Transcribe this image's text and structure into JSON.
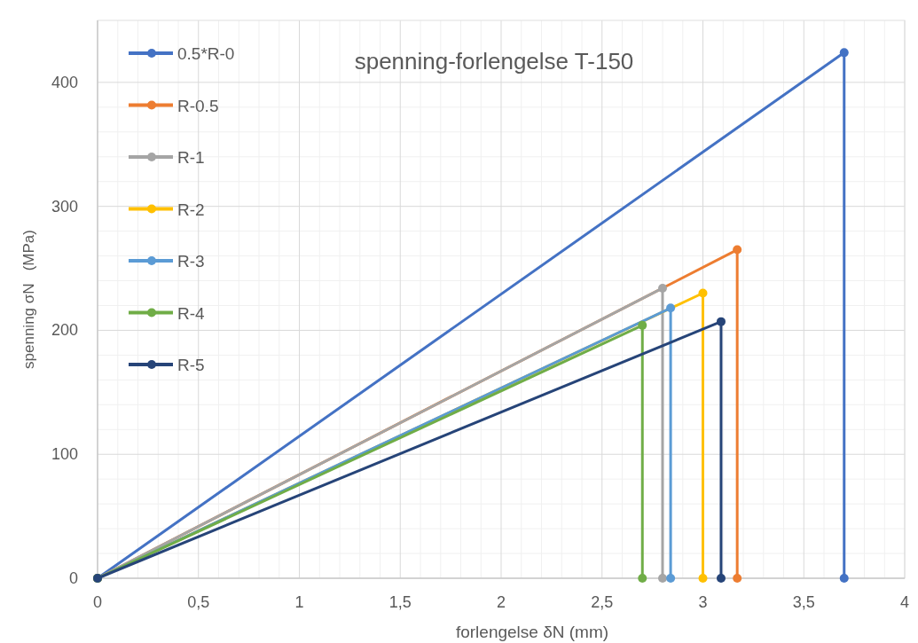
{
  "chart_data": {
    "type": "line",
    "title": "spenning-forlengelse T-150",
    "xlabel": "forlengelse δN (mm)",
    "ylabel": "spenning σN   (MPa)",
    "xlim": [
      0,
      4
    ],
    "ylim": [
      0,
      450
    ],
    "xticks": [
      0,
      {
        "value": 0.5,
        "label": "0,5"
      },
      1,
      {
        "value": 1.5,
        "label": "1,5"
      },
      2,
      {
        "value": 2.5,
        "label": "2,5"
      },
      3,
      {
        "value": 3.5,
        "label": "3,5"
      },
      4
    ],
    "yticks": [
      0,
      100,
      200,
      300,
      400
    ],
    "grid": true,
    "legend": "top left",
    "marker": "circle",
    "line_style": "solid",
    "series": [
      {
        "name": "0.5*R-0",
        "color": "#4472c4",
        "x": [
          0,
          3.7,
          3.7
        ],
        "values": [
          0,
          424,
          0
        ]
      },
      {
        "name": "R-0.5",
        "color": "#ed7d31",
        "x": [
          0,
          3.17,
          3.17
        ],
        "values": [
          0,
          265,
          0
        ]
      },
      {
        "name": "R-1",
        "color": "#a5a5a5",
        "x": [
          0,
          2.8,
          2.8
        ],
        "values": [
          0,
          234,
          0
        ]
      },
      {
        "name": "R-2",
        "color": "#ffc000",
        "x": [
          0,
          3.0,
          3.0
        ],
        "values": [
          0,
          230,
          0
        ]
      },
      {
        "name": "R-3",
        "color": "#5b9bd5",
        "x": [
          0,
          2.84,
          2.84
        ],
        "values": [
          0,
          218,
          0
        ]
      },
      {
        "name": "R-4",
        "color": "#70ad47",
        "x": [
          0,
          2.7,
          2.7
        ],
        "values": [
          0,
          204,
          0
        ]
      },
      {
        "name": "R-5",
        "color": "#264478",
        "x": [
          0,
          3.09,
          3.09
        ],
        "values": [
          0,
          207,
          0
        ]
      }
    ]
  }
}
